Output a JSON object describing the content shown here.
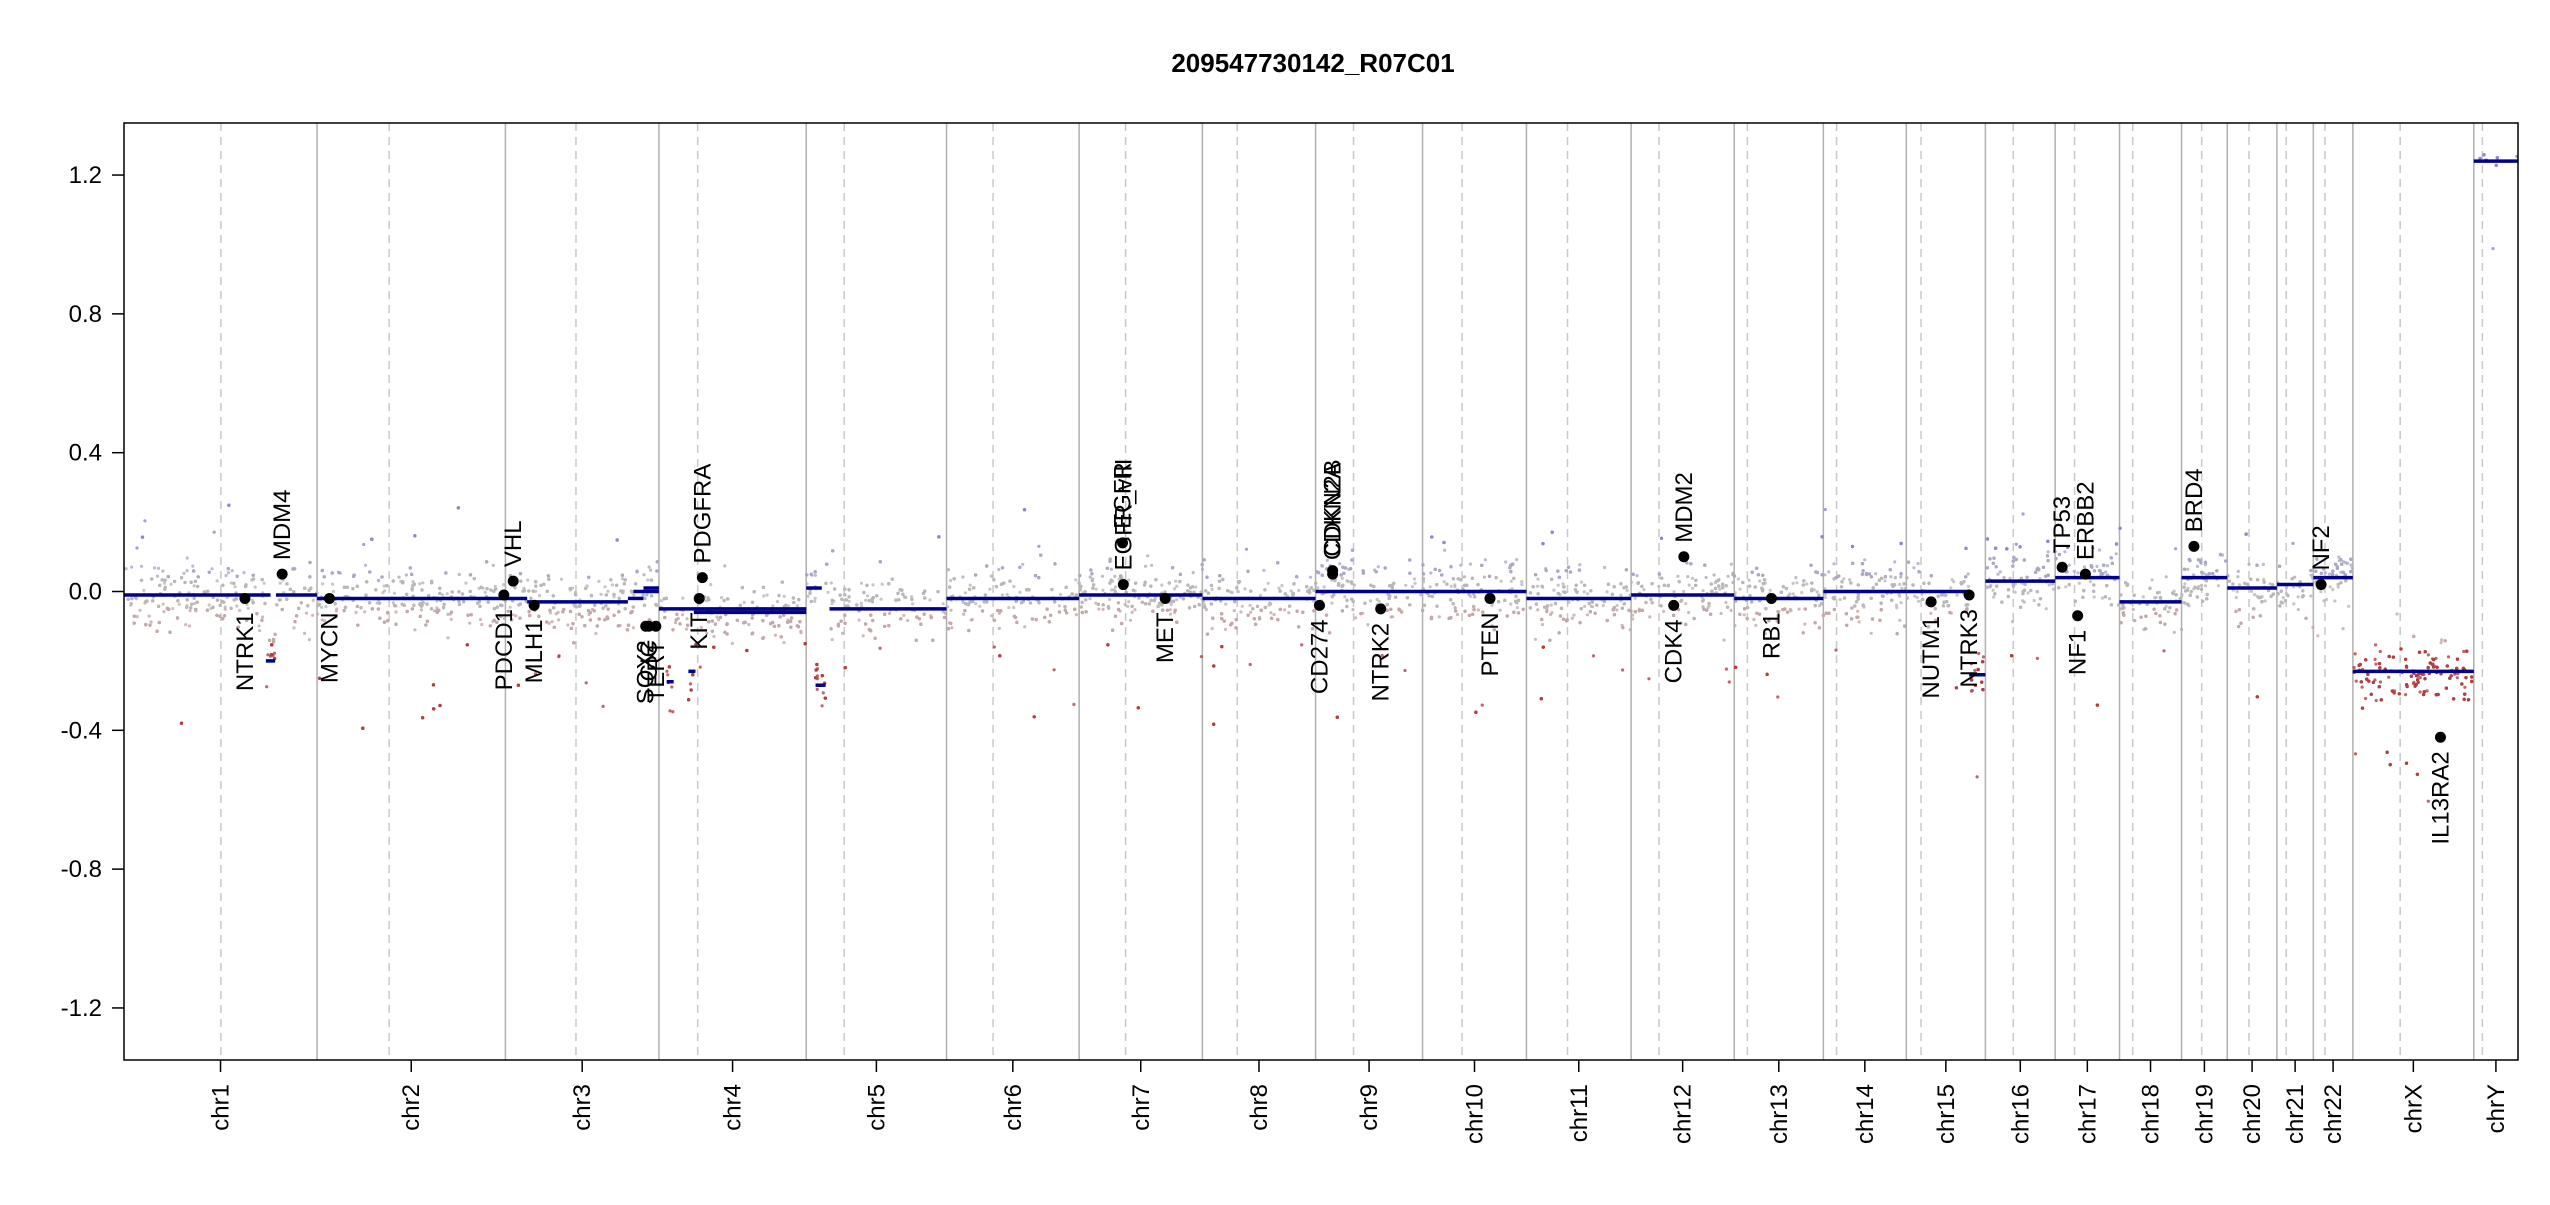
{
  "chart_data": {
    "type": "scatter",
    "title": "209547730142_R07C01",
    "xlabel": "",
    "ylabel": "",
    "ylim": [
      -1.35,
      1.35
    ],
    "yticks": [
      -1.2,
      -0.8,
      -0.4,
      0.0,
      0.4,
      0.8,
      1.2
    ],
    "ytick_labels": [
      "-1.2",
      "-0.8",
      "-0.4",
      "0.0",
      "0.4",
      "0.8",
      "1.2"
    ],
    "grid": false,
    "colors": {
      "segment": "#00008b",
      "gain_points": "#8a8ac8",
      "neutral_points": "#b8b8b8",
      "loss_points": "#b04040",
      "gene_marker": "#000000",
      "chrom_boundary": "#b0b0b0",
      "centromere": "#c8c8c8"
    },
    "chromosomes": [
      {
        "name": "chr1",
        "start": 0,
        "end": 249,
        "centromere": 125
      },
      {
        "name": "chr2",
        "start": 249,
        "end": 492,
        "centromere": 342
      },
      {
        "name": "chr3",
        "start": 492,
        "end": 690,
        "centromere": 583
      },
      {
        "name": "chr4",
        "start": 690,
        "end": 880,
        "centromere": 740
      },
      {
        "name": "chr5",
        "start": 880,
        "end": 1061,
        "centromere": 929
      },
      {
        "name": "chr6",
        "start": 1061,
        "end": 1232,
        "centromere": 1121
      },
      {
        "name": "chr7",
        "start": 1232,
        "end": 1391,
        "centromere": 1292
      },
      {
        "name": "chr8",
        "start": 1391,
        "end": 1537,
        "centromere": 1436
      },
      {
        "name": "chr9",
        "start": 1537,
        "end": 1675,
        "centromere": 1586
      },
      {
        "name": "chr10",
        "start": 1675,
        "end": 1809,
        "centromere": 1726
      },
      {
        "name": "chr11",
        "start": 1809,
        "end": 1944,
        "centromere": 1862
      },
      {
        "name": "chr12",
        "start": 1944,
        "end": 2077,
        "centromere": 1980
      },
      {
        "name": "chr13",
        "start": 2077,
        "end": 2192,
        "centromere": 2094
      },
      {
        "name": "chr14",
        "start": 2192,
        "end": 2299,
        "centromere": 2209
      },
      {
        "name": "chr15",
        "start": 2299,
        "end": 2401,
        "centromere": 2318
      },
      {
        "name": "chr16",
        "start": 2401,
        "end": 2491,
        "centromere": 2437
      },
      {
        "name": "chr17",
        "start": 2491,
        "end": 2574,
        "centromere": 2516
      },
      {
        "name": "chr18",
        "start": 2574,
        "end": 2654,
        "centromere": 2591
      },
      {
        "name": "chr19",
        "start": 2654,
        "end": 2713,
        "centromere": 2680
      },
      {
        "name": "chr20",
        "start": 2713,
        "end": 2777,
        "centromere": 2741
      },
      {
        "name": "chr21",
        "start": 2777,
        "end": 2824,
        "centromere": 2789
      },
      {
        "name": "chr22",
        "start": 2824,
        "end": 2875,
        "centromere": 2839
      },
      {
        "name": "chrX",
        "start": 2875,
        "end": 3031,
        "centromere": 2936
      },
      {
        "name": "chrY",
        "start": 3031,
        "end": 3088,
        "centromere": 3042
      }
    ],
    "segments": [
      {
        "x": [
          0,
          189
        ],
        "y": -0.01
      },
      {
        "x": [
          183,
          195
        ],
        "y": -0.2
      },
      {
        "x": [
          196,
          249
        ],
        "y": -0.01
      },
      {
        "x": [
          249,
          492
        ],
        "y": -0.02
      },
      {
        "x": [
          492,
          520
        ],
        "y": -0.02
      },
      {
        "x": [
          520,
          650
        ],
        "y": -0.03
      },
      {
        "x": [
          650,
          670
        ],
        "y": -0.02
      },
      {
        "x": [
          657,
          690
        ],
        "y": 0.0
      },
      {
        "x": [
          670,
          690
        ],
        "y": 0.01
      },
      {
        "x": [
          690,
          880
        ],
        "y": -0.05
      },
      {
        "x": [
          700,
          709
        ],
        "y": -0.26
      },
      {
        "x": [
          728,
          737
        ],
        "y": -0.23
      },
      {
        "x": [
          735,
          880
        ],
        "y": -0.06
      },
      {
        "x": [
          880,
          900
        ],
        "y": 0.01
      },
      {
        "x": [
          892,
          905
        ],
        "y": -0.27
      },
      {
        "x": [
          910,
          1061
        ],
        "y": -0.05
      },
      {
        "x": [
          1061,
          1232
        ],
        "y": -0.02
      },
      {
        "x": [
          1232,
          1391
        ],
        "y": -0.01
      },
      {
        "x": [
          1391,
          1537
        ],
        "y": -0.02
      },
      {
        "x": [
          1537,
          1675
        ],
        "y": 0.0
      },
      {
        "x": [
          1675,
          1809
        ],
        "y": 0.0
      },
      {
        "x": [
          1809,
          1944
        ],
        "y": -0.02
      },
      {
        "x": [
          1944,
          2077
        ],
        "y": -0.01
      },
      {
        "x": [
          2077,
          2192
        ],
        "y": -0.02
      },
      {
        "x": [
          2192,
          2299
        ],
        "y": 0.0
      },
      {
        "x": [
          2299,
          2380
        ],
        "y": 0.0
      },
      {
        "x": [
          2380,
          2401
        ],
        "y": -0.24
      },
      {
        "x": [
          2401,
          2491
        ],
        "y": 0.03
      },
      {
        "x": [
          2491,
          2574
        ],
        "y": 0.04
      },
      {
        "x": [
          2574,
          2654
        ],
        "y": -0.03
      },
      {
        "x": [
          2654,
          2713
        ],
        "y": 0.04
      },
      {
        "x": [
          2713,
          2777
        ],
        "y": 0.01
      },
      {
        "x": [
          2777,
          2824
        ],
        "y": 0.02
      },
      {
        "x": [
          2824,
          2875
        ],
        "y": 0.04
      },
      {
        "x": [
          2875,
          3031
        ],
        "y": -0.23
      },
      {
        "x": [
          3031,
          3088
        ],
        "y": 1.24
      }
    ],
    "genes": [
      {
        "name": "NTRK1",
        "x": 156,
        "y": -0.02,
        "label_side": "below"
      },
      {
        "name": "MDM4",
        "x": 204,
        "y": 0.05,
        "label_side": "above"
      },
      {
        "name": "MYCN",
        "x": 265,
        "y": -0.02,
        "label_side": "below"
      },
      {
        "name": "PDCD1",
        "x": 490,
        "y": -0.01,
        "label_side": "below"
      },
      {
        "name": "VHL",
        "x": 502,
        "y": 0.03,
        "label_side": "above"
      },
      {
        "name": "MLH1",
        "x": 529,
        "y": -0.04,
        "label_side": "below"
      },
      {
        "name": "SOX2",
        "x": 673,
        "y": -0.1,
        "label_side": "below"
      },
      {
        "name": "CIC",
        "x": 677,
        "y": -0.1,
        "label_side": "below"
      },
      {
        "name": "TERT",
        "x": 686,
        "y": -0.1,
        "label_side": "below"
      },
      {
        "name": "KIT",
        "x": 742,
        "y": -0.02,
        "label_side": "below"
      },
      {
        "name": "PDGFRA",
        "x": 746,
        "y": 0.04,
        "label_side": "above"
      },
      {
        "name": "EGFR",
        "x": 1288,
        "y": 0.14,
        "label_side": "above"
      },
      {
        "name": "EGFR_vIII",
        "x": 1289,
        "y": 0.02,
        "label_side": "above"
      },
      {
        "name": "MET",
        "x": 1343,
        "y": -0.02,
        "label_side": "below"
      },
      {
        "name": "CD274",
        "x": 1542,
        "y": -0.04,
        "label_side": "below"
      },
      {
        "name": "CDKN2A",
        "x": 1559,
        "y": 0.05,
        "label_side": "above"
      },
      {
        "name": "CDKN2B",
        "x": 1559,
        "y": 0.06,
        "label_side": "above"
      },
      {
        "name": "NTRK2",
        "x": 1621,
        "y": -0.05,
        "label_side": "below"
      },
      {
        "name": "PTEN",
        "x": 1762,
        "y": -0.02,
        "label_side": "below"
      },
      {
        "name": "CDK4",
        "x": 1999,
        "y": -0.04,
        "label_side": "below"
      },
      {
        "name": "MDM2",
        "x": 2012,
        "y": 0.1,
        "label_side": "above"
      },
      {
        "name": "RB1",
        "x": 2125,
        "y": -0.02,
        "label_side": "below"
      },
      {
        "name": "NUTM1",
        "x": 2331,
        "y": -0.03,
        "label_side": "below"
      },
      {
        "name": "NTRK3",
        "x": 2380,
        "y": -0.01,
        "label_side": "below"
      },
      {
        "name": "TP53",
        "x": 2500,
        "y": 0.07,
        "label_side": "above"
      },
      {
        "name": "NF1",
        "x": 2520,
        "y": -0.07,
        "label_side": "below"
      },
      {
        "name": "ERBB2",
        "x": 2530,
        "y": 0.05,
        "label_side": "above"
      },
      {
        "name": "BRD4",
        "x": 2670,
        "y": 0.13,
        "label_side": "above"
      },
      {
        "name": "NF2",
        "x": 2834,
        "y": 0.02,
        "label_side": "above"
      },
      {
        "name": "IL13RA2",
        "x": 2988,
        "y": -0.42,
        "label_side": "below"
      }
    ]
  }
}
